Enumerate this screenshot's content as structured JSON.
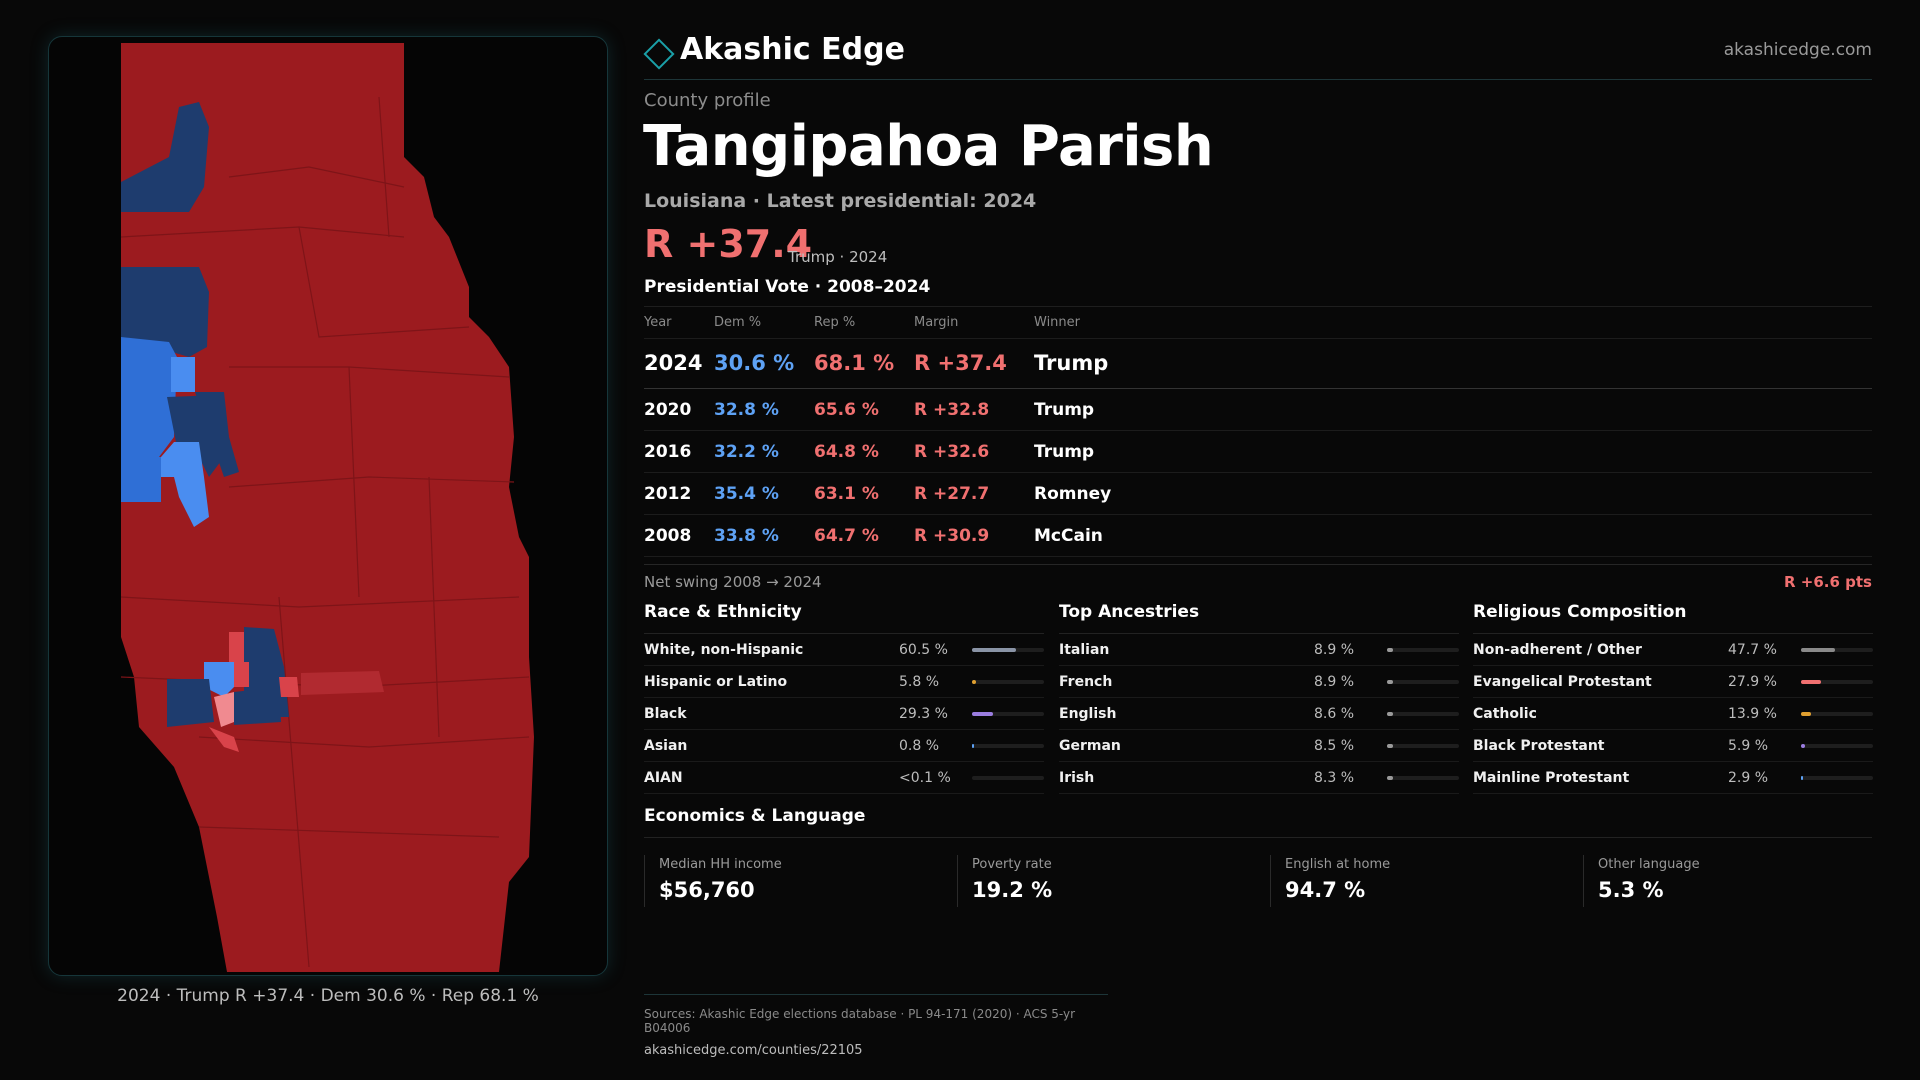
{
  "header": {
    "brand": "Akashic Edge",
    "site": "akashicedge.com",
    "logo_icon": "diamond-icon",
    "accent": "#1aa0a8"
  },
  "profile": {
    "kicker": "County profile",
    "title": "Tangipahoa Parish",
    "subtitle": "Louisiana · Latest presidential: 2024",
    "margin": "R +37.4",
    "margin_note": "Trump · 2024"
  },
  "vote": {
    "section_title": "Presidential Vote · 2008–2024",
    "headers": {
      "year": "Year",
      "dem": "Dem %",
      "rep": "Rep %",
      "margin": "Margin",
      "winner": "Winner"
    },
    "rows": [
      {
        "year": "2024",
        "dem": "30.6 %",
        "rep": "68.1 %",
        "margin": "R +37.4",
        "winner": "Trump"
      },
      {
        "year": "2020",
        "dem": "32.8 %",
        "rep": "65.6 %",
        "margin": "R +32.8",
        "winner": "Trump"
      },
      {
        "year": "2016",
        "dem": "32.2 %",
        "rep": "64.8 %",
        "margin": "R +32.6",
        "winner": "Trump"
      },
      {
        "year": "2012",
        "dem": "35.4 %",
        "rep": "63.1 %",
        "margin": "R +27.7",
        "winner": "Romney"
      },
      {
        "year": "2008",
        "dem": "33.8 %",
        "rep": "64.7 %",
        "margin": "R +30.9",
        "winner": "McCain"
      }
    ],
    "swing_label": "Net swing 2008 → 2024",
    "swing_value": "R +6.6 pts",
    "colors": {
      "dem": "#5ea2f5",
      "rep": "#f07070"
    }
  },
  "race": {
    "title": "Race & Ethnicity",
    "items": [
      {
        "label": "White, non-Hispanic",
        "value": "60.5 %",
        "fraction": 0.605,
        "color": "#8a94a6"
      },
      {
        "label": "Hispanic or Latino",
        "value": "5.8 %",
        "fraction": 0.058,
        "color": "#e0a030"
      },
      {
        "label": "Black",
        "value": "29.3 %",
        "fraction": 0.293,
        "color": "#9b7de0"
      },
      {
        "label": "Asian",
        "value": "0.8 %",
        "fraction": 0.008,
        "color": "#5ea2f5"
      },
      {
        "label": "AIAN",
        "value": "<0.1 %",
        "fraction": 0.0,
        "color": "#5ea2f5"
      }
    ]
  },
  "ancestry": {
    "title": "Top Ancestries",
    "items": [
      {
        "label": "Italian",
        "value": "8.9 %",
        "fraction": 0.089,
        "color": "#9a9a9a"
      },
      {
        "label": "French",
        "value": "8.9 %",
        "fraction": 0.089,
        "color": "#9a9a9a"
      },
      {
        "label": "English",
        "value": "8.6 %",
        "fraction": 0.086,
        "color": "#9a9a9a"
      },
      {
        "label": "German",
        "value": "8.5 %",
        "fraction": 0.085,
        "color": "#9a9a9a"
      },
      {
        "label": "Irish",
        "value": "8.3 %",
        "fraction": 0.083,
        "color": "#9a9a9a"
      }
    ]
  },
  "religion": {
    "title": "Religious Composition",
    "items": [
      {
        "label": "Non-adherent / Other",
        "value": "47.7 %",
        "fraction": 0.477,
        "color": "#8a8a8a"
      },
      {
        "label": "Evangelical Protestant",
        "value": "27.9 %",
        "fraction": 0.279,
        "color": "#f07070"
      },
      {
        "label": "Catholic",
        "value": "13.9 %",
        "fraction": 0.139,
        "color": "#e0a030"
      },
      {
        "label": "Black Protestant",
        "value": "5.9 %",
        "fraction": 0.059,
        "color": "#9b7de0"
      },
      {
        "label": "Mainline Protestant",
        "value": "2.9 %",
        "fraction": 0.029,
        "color": "#5ea2f5"
      }
    ]
  },
  "economics": {
    "title": "Economics & Language",
    "cells": [
      {
        "label": "Median HH income",
        "value": "$56,760"
      },
      {
        "label": "Poverty rate",
        "value": "19.2 %"
      },
      {
        "label": "English at home",
        "value": "94.7 %"
      },
      {
        "label": "Other language",
        "value": "5.3 %"
      }
    ]
  },
  "map": {
    "caption": "2024 · Trump R +37.4 · Dem 30.6 % · Rep 68.1 %",
    "colors": {
      "rep": "#9c1b1f",
      "rep_light": "#d9434a",
      "rep_pale": "#f08a90",
      "dem_dark": "#1e3c6e",
      "dem": "#2f6fd6",
      "dem_light": "#4a8df0"
    }
  },
  "footer": {
    "sources": "Sources: Akashic Edge elections database · PL 94-171 (2020) · ACS 5-yr B04006",
    "url": "akashicedge.com/counties/22105"
  }
}
